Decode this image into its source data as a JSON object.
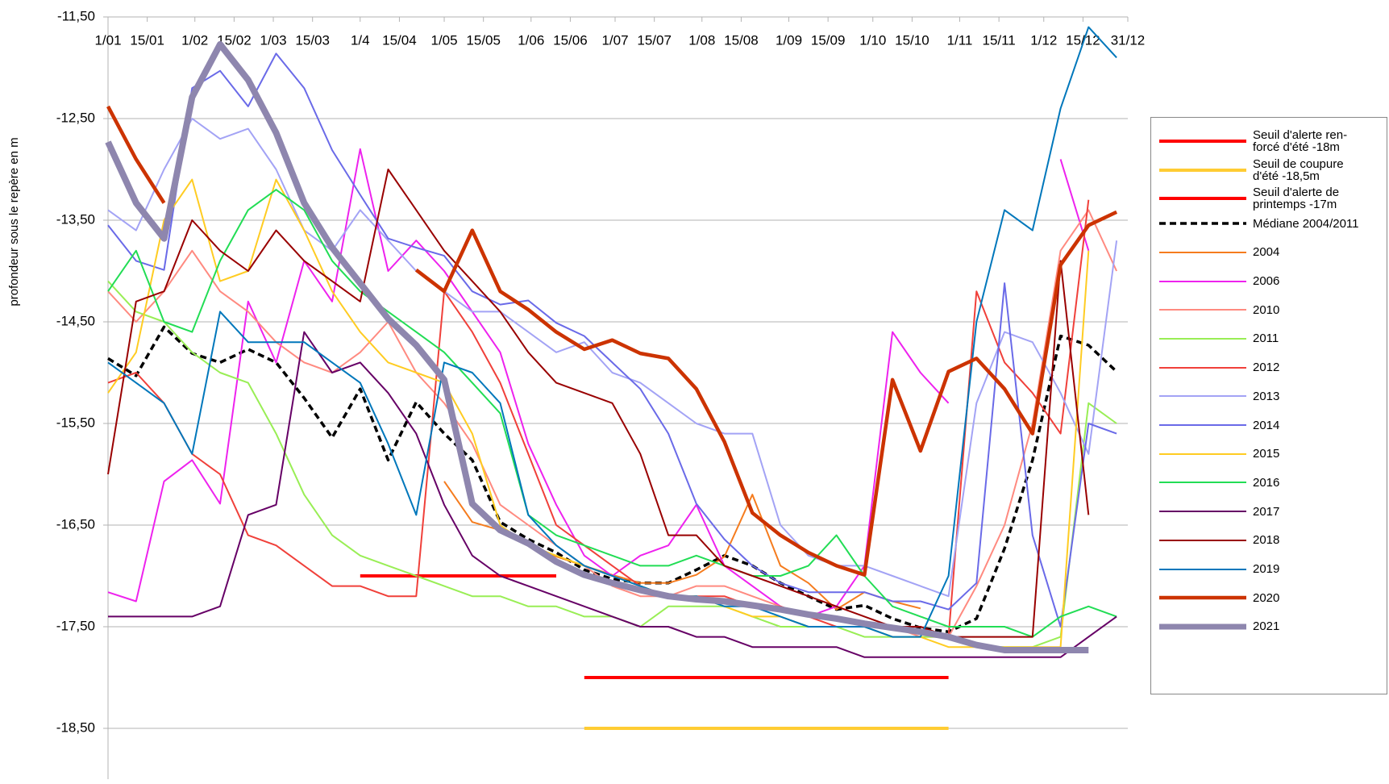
{
  "chart_data": {
    "type": "line",
    "y_label": "profondeur sous le repère en m",
    "xlim": [
      1,
      365
    ],
    "ylim": [
      -19,
      -11.5
    ],
    "grid": true,
    "legend": "right",
    "xticks": [
      {
        "value": 1,
        "label": "1/01"
      },
      {
        "value": 15,
        "label": "15/01"
      },
      {
        "value": 32,
        "label": "1/02"
      },
      {
        "value": 46,
        "label": "15/02"
      },
      {
        "value": 60,
        "label": "1/03"
      },
      {
        "value": 74,
        "label": "15/03"
      },
      {
        "value": 91,
        "label": "1/4"
      },
      {
        "value": 105,
        "label": "15/04"
      },
      {
        "value": 121,
        "label": "1/05"
      },
      {
        "value": 135,
        "label": "15/05"
      },
      {
        "value": 152,
        "label": "1/06"
      },
      {
        "value": 166,
        "label": "15/06"
      },
      {
        "value": 182,
        "label": "1/07"
      },
      {
        "value": 196,
        "label": "15/07"
      },
      {
        "value": 213,
        "label": "1/08"
      },
      {
        "value": 227,
        "label": "15/08"
      },
      {
        "value": 244,
        "label": "1/09"
      },
      {
        "value": 258,
        "label": "15/09"
      },
      {
        "value": 274,
        "label": "1/10"
      },
      {
        "value": 288,
        "label": "15/10"
      },
      {
        "value": 305,
        "label": "1/11"
      },
      {
        "value": 319,
        "label": "15/11"
      },
      {
        "value": 335,
        "label": "1/12"
      },
      {
        "value": 349,
        "label": "15/12"
      },
      {
        "value": 365,
        "label": "31/12"
      }
    ],
    "yticks": [
      {
        "value": -11.5,
        "label": "-11,50"
      },
      {
        "value": -12.5,
        "label": "-12,50"
      },
      {
        "value": -13.5,
        "label": "-13,50"
      },
      {
        "value": -14.5,
        "label": "-14,50"
      },
      {
        "value": -15.5,
        "label": "-15,50"
      },
      {
        "value": -16.5,
        "label": "-16,50"
      },
      {
        "value": -17.5,
        "label": "-17,50"
      },
      {
        "value": -18.5,
        "label": "-18,50"
      }
    ],
    "x": [
      1,
      11,
      21,
      31,
      41,
      51,
      61,
      71,
      81,
      91,
      101,
      111,
      121,
      131,
      141,
      151,
      161,
      171,
      181,
      191,
      201,
      211,
      221,
      231,
      241,
      251,
      261,
      271,
      281,
      291,
      301,
      311,
      321,
      331,
      341,
      351,
      361
    ],
    "series": [
      {
        "name": "Seuil d'alerte ren-\nforcé d'été -18m",
        "color": "#ff0000",
        "style": "solid",
        "values": [
          null,
          null,
          null,
          null,
          null,
          null,
          null,
          null,
          null,
          null,
          null,
          null,
          null,
          null,
          null,
          null,
          null,
          -18,
          -18,
          -18,
          -18,
          -18,
          -18,
          -18,
          -18,
          -18,
          -18,
          -18,
          -18,
          -18,
          -18,
          null,
          null,
          null,
          null,
          null,
          null
        ]
      },
      {
        "name": "Seuil de coupure\nd'été -18,5m",
        "color": "#ffcc33",
        "style": "solid",
        "values": [
          null,
          null,
          null,
          null,
          null,
          null,
          null,
          null,
          null,
          null,
          null,
          null,
          null,
          null,
          null,
          null,
          null,
          -18.5,
          -18.5,
          -18.5,
          -18.5,
          -18.5,
          -18.5,
          -18.5,
          -18.5,
          -18.5,
          -18.5,
          -18.5,
          -18.5,
          -18.5,
          -18.5,
          null,
          null,
          null,
          null,
          null,
          null
        ]
      },
      {
        "name": "Seuil d'alerte de\nprintemps -17m",
        "color": "#ff0000",
        "style": "solid",
        "values": [
          null,
          null,
          null,
          null,
          null,
          null,
          null,
          null,
          null,
          -17,
          -17,
          -17,
          -17,
          -17,
          -17,
          -17,
          -17,
          null,
          null,
          null,
          null,
          null,
          null,
          null,
          null,
          null,
          null,
          null,
          null,
          null,
          null,
          null,
          null,
          null,
          null,
          null,
          null
        ]
      },
      {
        "name": "Médiane 2004/2011",
        "color": "#000000",
        "style": "dashed",
        "values": [
          -14.86,
          -15.03,
          -14.55,
          -14.81,
          -14.9,
          -14.77,
          -14.9,
          -15.25,
          -15.64,
          -15.16,
          -15.86,
          -15.29,
          -15.6,
          -15.86,
          -16.47,
          -16.64,
          -16.77,
          -16.94,
          -17.03,
          -17.07,
          -17.07,
          -16.94,
          -16.8,
          -16.9,
          -17.07,
          -17.2,
          -17.33,
          -17.29,
          -17.42,
          -17.51,
          -17.55,
          -17.42,
          -16.73,
          -15.86,
          -14.64,
          -14.73,
          -14.99
        ]
      },
      {
        "name": "2004",
        "color": "#f57c1e",
        "style": "solid",
        "values": [
          null,
          null,
          null,
          null,
          null,
          null,
          null,
          null,
          null,
          null,
          null,
          null,
          -16.07,
          -16.47,
          -16.55,
          -16.68,
          -16.81,
          -16.9,
          -16.99,
          -17.07,
          -17.07,
          -16.99,
          -16.81,
          -16.2,
          -16.9,
          -17.07,
          -17.33,
          -17.16,
          -17.25,
          -17.32,
          null,
          null,
          null,
          null,
          null,
          null,
          null
        ]
      },
      {
        "name": "2006",
        "color": "#ee22ee",
        "style": "solid",
        "values": [
          -17.16,
          -17.25,
          -16.07,
          -15.86,
          -16.29,
          -14.3,
          -14.9,
          -13.9,
          -14.3,
          -12.8,
          -14.0,
          -13.7,
          -14.0,
          -14.4,
          -14.8,
          -15.7,
          -16.3,
          -16.8,
          -17.0,
          -16.8,
          -16.7,
          -16.3,
          -16.9,
          -17.1,
          -17.3,
          -17.4,
          -17.3,
          -16.9,
          -14.6,
          -15.0,
          -15.3,
          null,
          null,
          null,
          -12.9,
          -13.8,
          null
        ]
      },
      {
        "name": "2010",
        "color": "#ff8a80",
        "style": "solid",
        "values": [
          -14.2,
          -14.5,
          -14.2,
          -13.8,
          -14.2,
          -14.4,
          -14.7,
          -14.9,
          -15.0,
          -14.8,
          -14.5,
          -15.0,
          -15.3,
          -15.7,
          -16.3,
          -16.5,
          -16.7,
          -16.9,
          -17.1,
          -17.2,
          -17.2,
          -17.1,
          -17.1,
          -17.2,
          -17.3,
          -17.4,
          -17.4,
          -17.5,
          -17.5,
          -17.6,
          -17.6,
          -17.1,
          -16.5,
          -15.5,
          -13.8,
          -13.4,
          -14.0
        ]
      },
      {
        "name": "2011",
        "color": "#99ee55",
        "style": "solid",
        "values": [
          -14.1,
          -14.4,
          -14.5,
          -14.8,
          -15.0,
          -15.1,
          -15.6,
          -16.2,
          -16.6,
          -16.8,
          -16.9,
          -17.0,
          -17.1,
          -17.2,
          -17.2,
          -17.3,
          -17.3,
          -17.4,
          -17.4,
          -17.5,
          -17.3,
          -17.3,
          -17.3,
          -17.4,
          -17.5,
          -17.5,
          -17.5,
          -17.6,
          -17.6,
          -17.6,
          -17.6,
          -17.7,
          -17.7,
          -17.7,
          -17.6,
          -15.3,
          -15.5
        ]
      },
      {
        "name": "2012",
        "color": "#f0403a",
        "style": "solid",
        "values": [
          -15.1,
          -15.0,
          -15.3,
          -15.8,
          -16.0,
          -16.6,
          -16.7,
          -16.9,
          -17.1,
          -17.1,
          -17.2,
          -17.2,
          -14.2,
          -14.6,
          -15.1,
          -15.8,
          -16.5,
          -16.7,
          -16.9,
          -17.1,
          -17.2,
          -17.2,
          -17.2,
          -17.3,
          -17.3,
          -17.4,
          -17.5,
          -17.5,
          -17.5,
          -17.5,
          -17.6,
          -14.2,
          -14.9,
          -15.2,
          -15.6,
          -13.3,
          null
        ]
      },
      {
        "name": "2013",
        "color": "#a3a3f5",
        "style": "solid",
        "values": [
          -13.4,
          -13.6,
          -13.0,
          -12.5,
          -12.7,
          -12.6,
          -13.0,
          -13.6,
          -13.8,
          -13.4,
          -13.7,
          -14.0,
          -14.2,
          -14.4,
          -14.4,
          -14.6,
          -14.8,
          -14.7,
          -15.0,
          -15.1,
          -15.3,
          -15.5,
          -15.6,
          -15.6,
          -16.5,
          -16.8,
          -16.9,
          -16.9,
          -17.0,
          -17.1,
          -17.2,
          -15.3,
          -14.6,
          -14.7,
          -15.2,
          -15.8,
          -13.7
        ]
      },
      {
        "name": "2014",
        "color": "#6a6ae8",
        "style": "solid",
        "values": [
          -13.55,
          -13.9,
          -13.99,
          -12.2,
          -12.03,
          -12.38,
          -11.86,
          -12.2,
          -12.81,
          -13.25,
          -13.68,
          -13.77,
          -13.85,
          -14.2,
          -14.33,
          -14.29,
          -14.51,
          -14.64,
          -14.9,
          -15.16,
          -15.6,
          -16.29,
          -16.64,
          -16.9,
          -17.07,
          -17.16,
          -17.16,
          -17.16,
          -17.25,
          -17.25,
          -17.33,
          -17.07,
          -14.12,
          -16.6,
          -17.5,
          -15.5,
          -15.6
        ]
      },
      {
        "name": "2015",
        "color": "#ffcc22",
        "style": "solid",
        "values": [
          -15.2,
          -14.8,
          -13.5,
          -13.1,
          -14.1,
          -14.0,
          -13.1,
          -13.6,
          -14.2,
          -14.6,
          -14.9,
          -15.0,
          -15.1,
          -15.6,
          -16.5,
          -16.7,
          -16.8,
          -16.9,
          -17.0,
          -17.1,
          -17.2,
          -17.2,
          -17.3,
          -17.4,
          -17.4,
          -17.5,
          -17.5,
          -17.5,
          -17.6,
          -17.6,
          -17.7,
          -17.7,
          -17.7,
          -17.7,
          -17.7,
          -13.8,
          null
        ]
      },
      {
        "name": "2016",
        "color": "#22dd55",
        "style": "solid",
        "values": [
          -14.2,
          -13.8,
          -14.5,
          -14.6,
          -13.9,
          -13.4,
          -13.2,
          -13.4,
          -13.9,
          -14.2,
          -14.4,
          -14.6,
          -14.8,
          -15.1,
          -15.4,
          -16.4,
          -16.6,
          -16.7,
          -16.8,
          -16.9,
          -16.9,
          -16.8,
          -16.9,
          -17.0,
          -17.0,
          -16.9,
          -16.6,
          -17.0,
          -17.3,
          -17.4,
          -17.5,
          -17.5,
          -17.5,
          -17.6,
          -17.4,
          -17.3,
          -17.4
        ]
      },
      {
        "name": "2017",
        "color": "#660066",
        "style": "solid",
        "values": [
          -17.4,
          -17.4,
          -17.4,
          -17.4,
          -17.3,
          -16.4,
          -16.3,
          -14.6,
          -15.0,
          -14.9,
          -15.2,
          -15.6,
          -16.3,
          -16.8,
          -17.0,
          -17.1,
          -17.2,
          -17.3,
          -17.4,
          -17.5,
          -17.5,
          -17.6,
          -17.6,
          -17.7,
          -17.7,
          -17.7,
          -17.7,
          -17.8,
          -17.8,
          -17.8,
          -17.8,
          -17.8,
          -17.8,
          -17.8,
          -17.8,
          -17.6,
          -17.4
        ]
      },
      {
        "name": "2018",
        "color": "#990000",
        "style": "solid",
        "values": [
          -16.0,
          -14.3,
          -14.2,
          -13.5,
          -13.8,
          -14.0,
          -13.6,
          -13.9,
          -14.1,
          -14.3,
          -13.0,
          -13.4,
          -13.8,
          -14.1,
          -14.4,
          -14.8,
          -15.1,
          -15.2,
          -15.3,
          -15.8,
          -16.6,
          -16.6,
          -16.9,
          -17.0,
          -17.1,
          -17.2,
          -17.3,
          -17.4,
          -17.5,
          -17.5,
          -17.6,
          -17.6,
          -17.6,
          -17.6,
          -13.9,
          -16.4,
          null
        ]
      },
      {
        "name": "2019",
        "color": "#0077bb",
        "style": "solid",
        "values": [
          -14.9,
          -15.1,
          -15.3,
          -15.8,
          -14.4,
          -14.7,
          -14.7,
          -14.7,
          -14.9,
          -15.1,
          -15.7,
          -16.4,
          -14.9,
          -15.0,
          -15.3,
          -16.4,
          -16.7,
          -16.9,
          -17.0,
          -17.1,
          -17.2,
          -17.2,
          -17.3,
          -17.3,
          -17.4,
          -17.5,
          -17.5,
          -17.5,
          -17.6,
          -17.6,
          -17.0,
          -14.5,
          -13.4,
          -13.6,
          -12.4,
          -11.6,
          -11.9
        ]
      },
      {
        "name": "2020",
        "color": "#cc3300",
        "style": "solid",
        "values": [
          -12.38,
          -12.9,
          -13.33,
          null,
          null,
          null,
          null,
          null,
          null,
          null,
          null,
          -13.99,
          -14.2,
          -13.6,
          -14.2,
          -14.38,
          -14.6,
          -14.77,
          -14.68,
          -14.81,
          -14.86,
          -15.16,
          -15.68,
          -16.38,
          -16.6,
          -16.77,
          -16.9,
          -16.99,
          -15.07,
          -15.77,
          -14.99,
          -14.86,
          -15.16,
          -15.6,
          -13.94,
          -13.55,
          -13.42
        ]
      },
      {
        "name": "2021",
        "color": "#8e86ae",
        "style": "solid",
        "values": [
          -12.73,
          -13.33,
          -13.68,
          -12.29,
          -11.77,
          -12.12,
          -12.64,
          -13.33,
          -13.77,
          -14.12,
          -14.47,
          -14.73,
          -15.07,
          -16.29,
          -16.55,
          -16.68,
          -16.86,
          -16.99,
          -17.07,
          -17.14,
          -17.2,
          -17.23,
          -17.25,
          -17.29,
          -17.33,
          -17.38,
          -17.42,
          -17.47,
          -17.51,
          -17.55,
          -17.6,
          -17.68,
          -17.73,
          -17.73,
          -17.73,
          -17.73,
          null
        ]
      }
    ]
  }
}
